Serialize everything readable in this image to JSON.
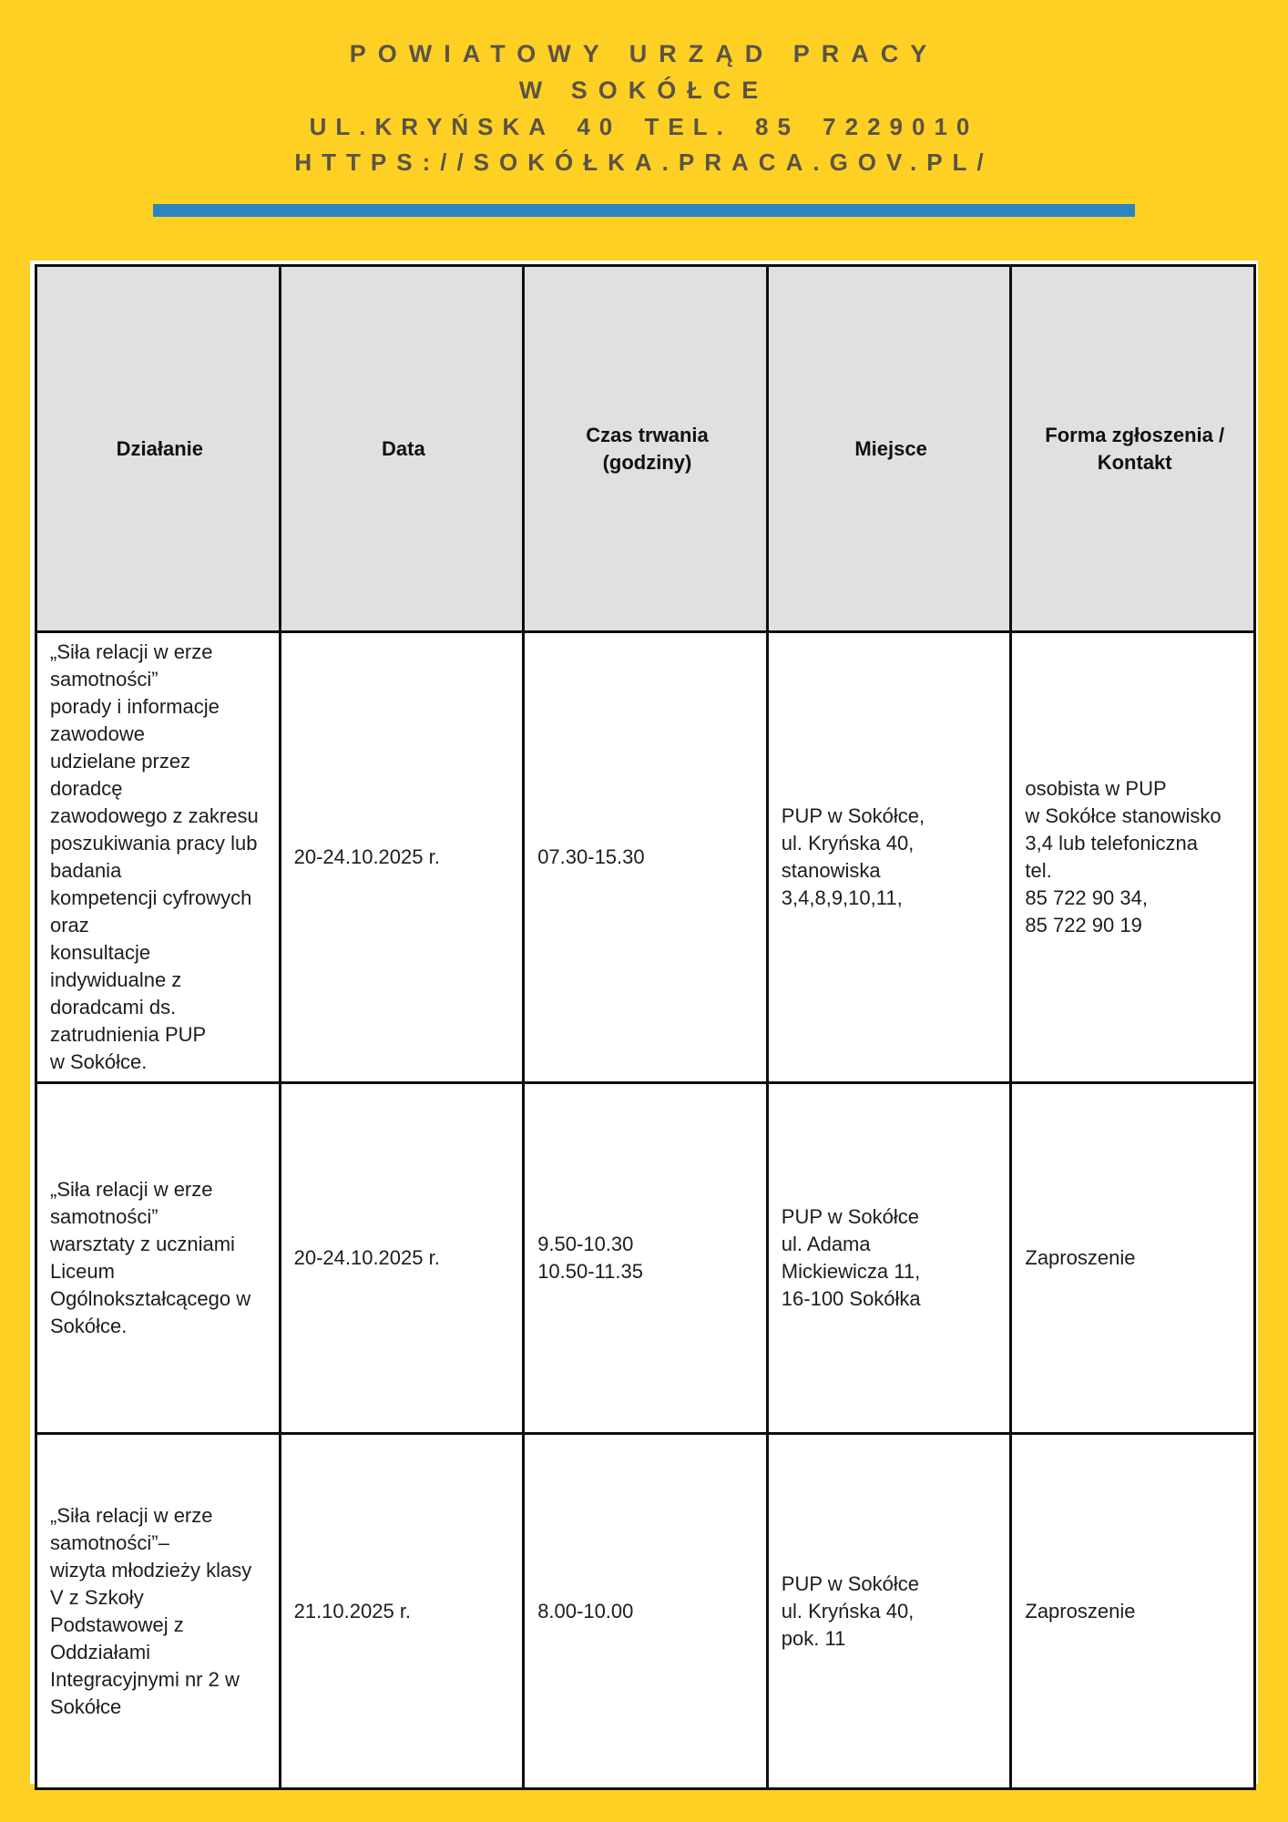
{
  "page": {
    "background_color": "#FFD024",
    "sheet_color": "#FFFFFF"
  },
  "header": {
    "line1": "POWIATOWY URZĄD PRACY",
    "line2": "W SOKÓŁCE",
    "line3": "UL.KRYŃSKA 40 TEL. 85 7229010",
    "line4": "HTTPS://SOKÓŁKA.PRACA.GOV.PL/",
    "text_color": "#5B5345",
    "divider_color": "#2B84C3"
  },
  "table": {
    "header_background": "#E0E0E0",
    "border_color": "#0E0E0E",
    "columns": [
      "Działanie",
      "Data",
      "Czas trwania\n(godziny)",
      "Miejsce",
      "Forma zgłoszenia /\nKontakt"
    ],
    "rows": [
      {
        "dzialanie": "„Siła relacji w erze\nsamotności”\nporady i informacje\nzawodowe\nudzielane przez\ndoradcę\nzawodowego z zakresu\nposzukiwania pracy lub\nbadania\nkompetencji cyfrowych\noraz\nkonsultacje\nindywidualne z\ndoradcami ds.\nzatrudnienia PUP\nw Sokółce.",
        "data": "20-24.10.2025 r.",
        "czas": "07.30-15.30",
        "miejsce": "PUP w Sokółce,\nul. Kryńska 40,\nstanowiska\n3,4,8,9,10,11,",
        "forma": "osobista w PUP\nw Sokółce stanowisko\n3,4 lub telefoniczna\ntel.\n85 722 90 34,\n85 722 90 19"
      },
      {
        "dzialanie": "„Siła relacji w erze\nsamotności”\nwarsztaty z uczniami\nLiceum\nOgólnokształcącego w\nSokółce.",
        "data": "20-24.10.2025 r.",
        "czas": "9.50-10.30\n10.50-11.35",
        "miejsce": "PUP w Sokółce\nul. Adama\nMickiewicza 11,\n16-100 Sokółka",
        "forma": "Zaproszenie"
      },
      {
        "dzialanie": "„Siła relacji w erze\nsamotności”–\nwizyta młodzieży klasy\nV z Szkoły\nPodstawowej z\nOddziałami\nIntegracyjnymi nr 2 w\nSokółce",
        "data": "21.10.2025 r.",
        "czas": "8.00-10.00",
        "miejsce": "PUP w Sokółce\nul. Kryńska 40,\npok. 11",
        "forma": "Zaproszenie"
      }
    ]
  }
}
